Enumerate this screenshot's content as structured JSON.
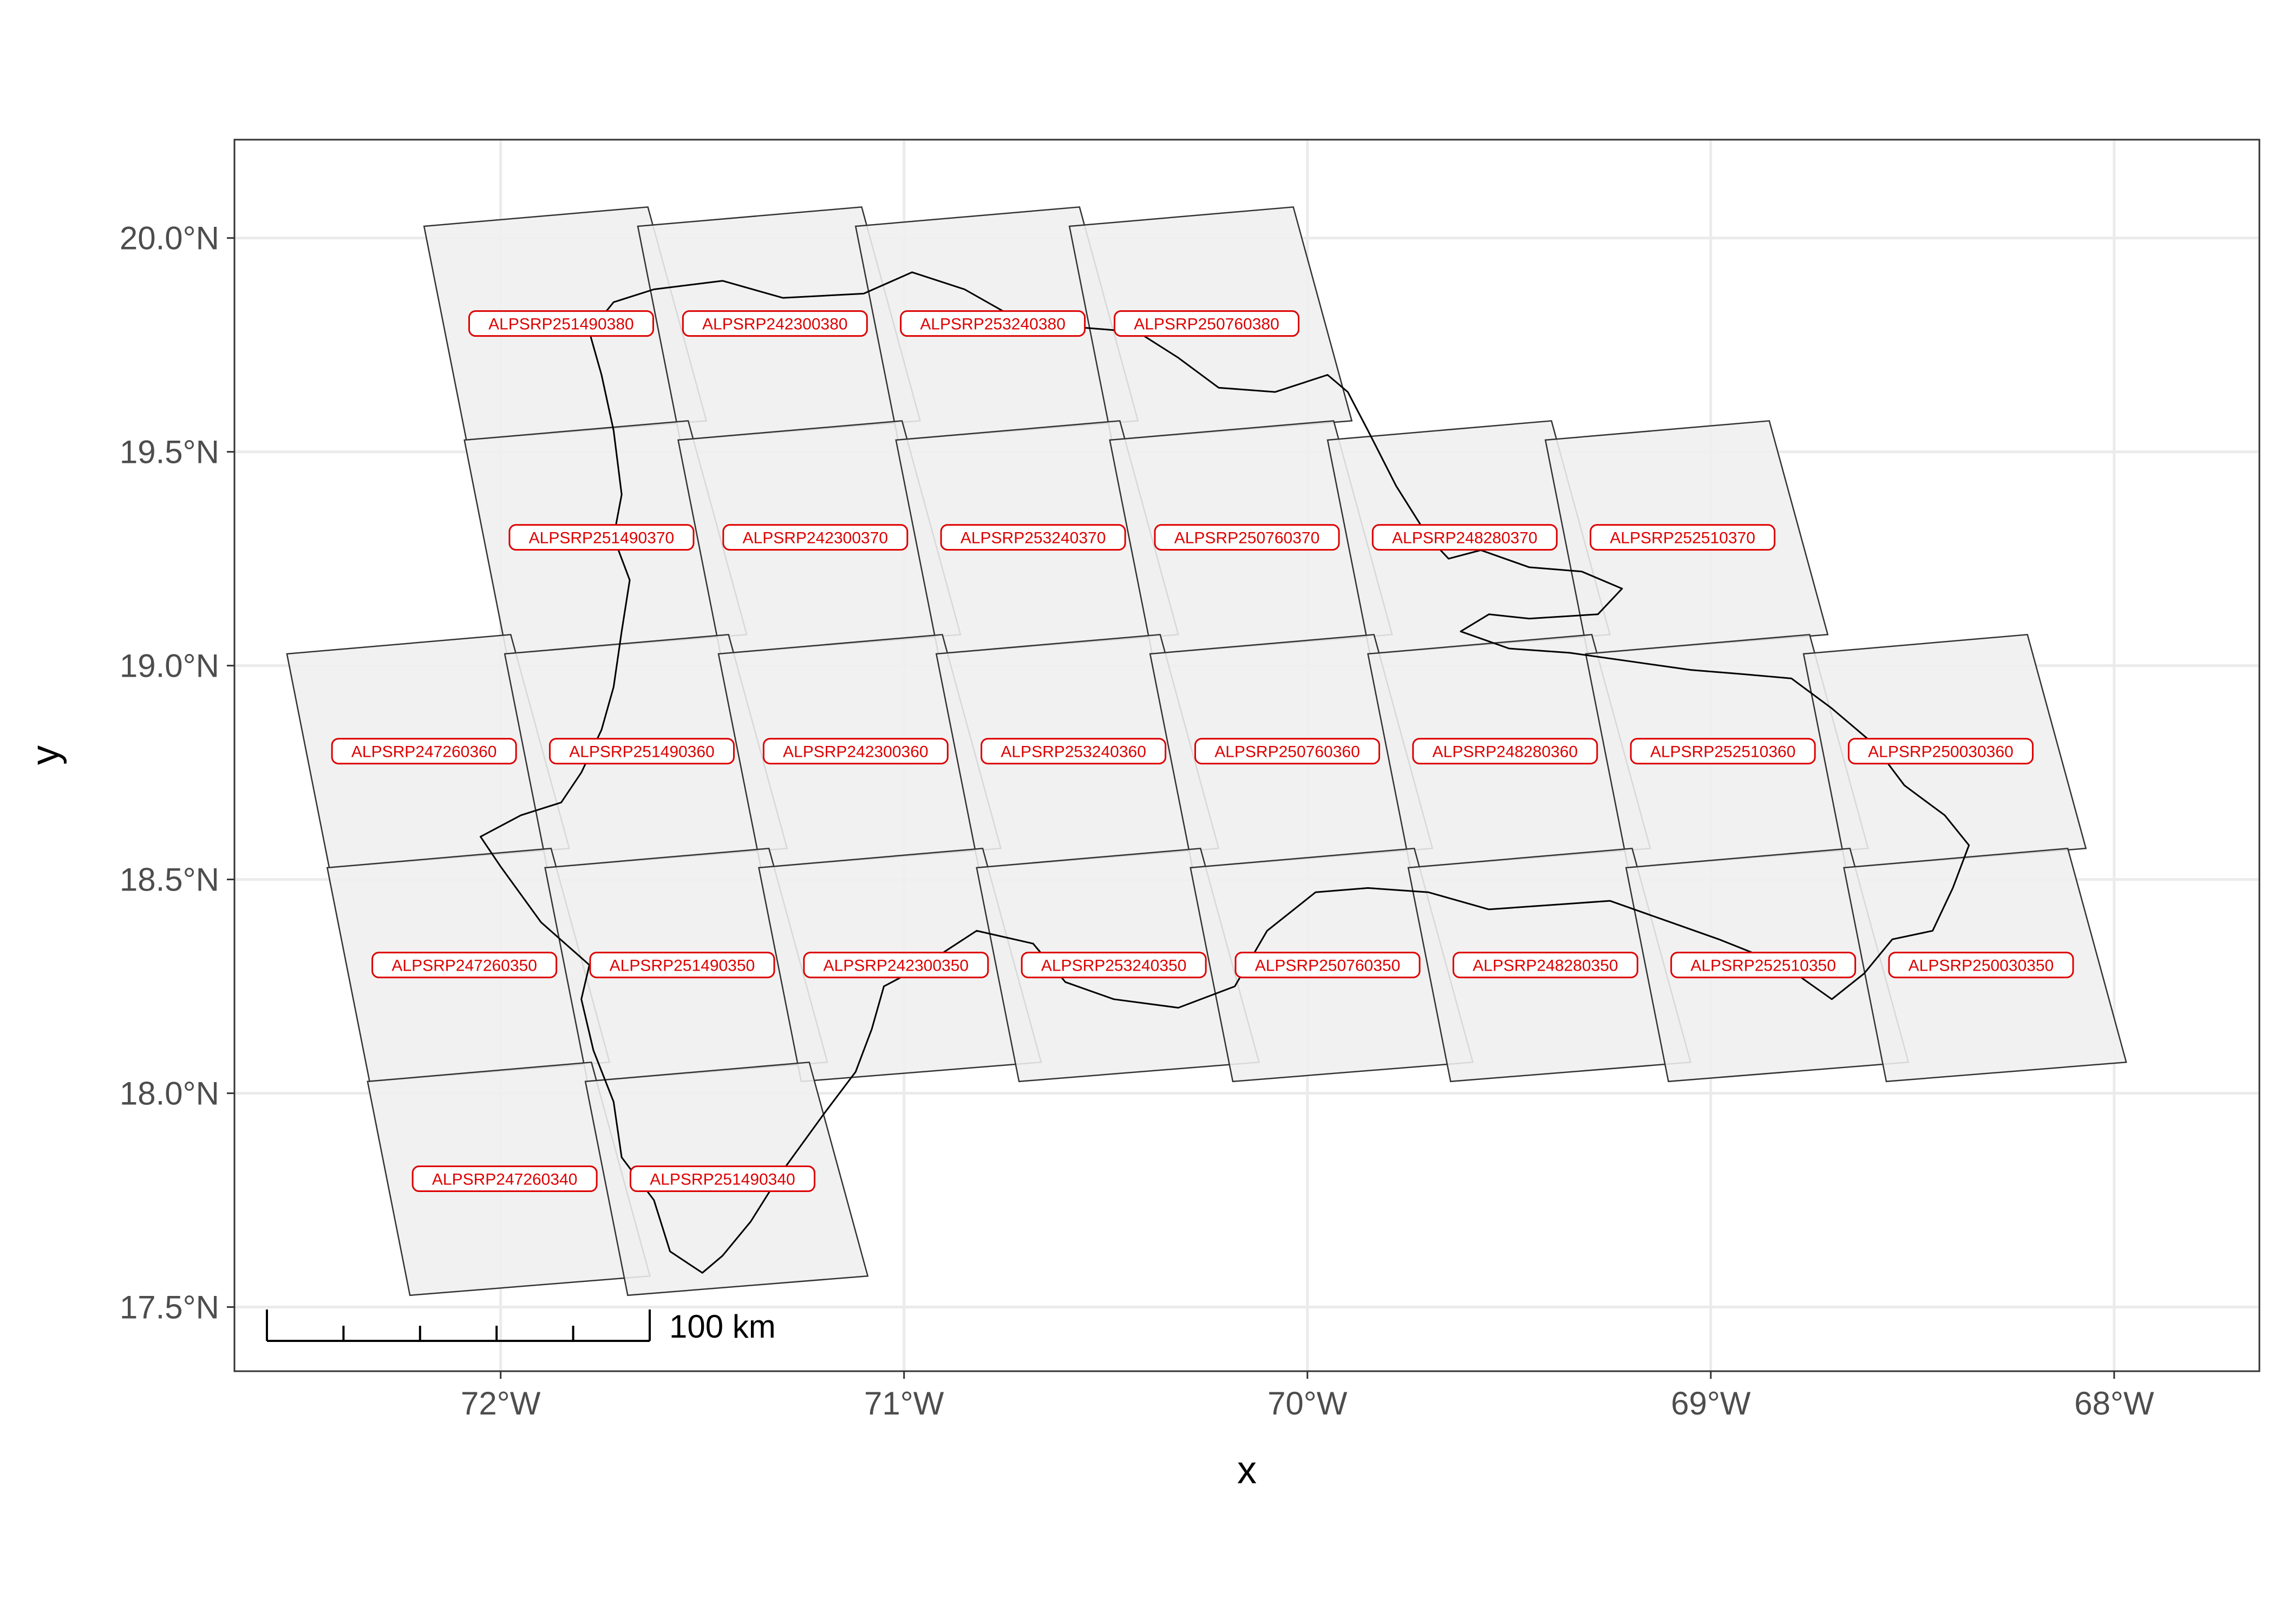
{
  "chart_data": {
    "type": "map",
    "title": "",
    "xlabel": "x",
    "ylabel": "y",
    "xlim": [
      -72.66,
      -67.64
    ],
    "ylim": [
      17.35,
      20.23
    ],
    "x_ticks": [
      {
        "value": -72,
        "label": "72°W"
      },
      {
        "value": -71,
        "label": "71°W"
      },
      {
        "value": -70,
        "label": "70°W"
      },
      {
        "value": -69,
        "label": "69°W"
      },
      {
        "value": -68,
        "label": "68°W"
      }
    ],
    "y_ticks": [
      {
        "value": 17.5,
        "label": "17.5°N"
      },
      {
        "value": 18.0,
        "label": "18.0°N"
      },
      {
        "value": 18.5,
        "label": "18.5°N"
      },
      {
        "value": 19.0,
        "label": "19.0°N"
      },
      {
        "value": 19.5,
        "label": "19.5°N"
      },
      {
        "value": 20.0,
        "label": "20.0°N"
      }
    ],
    "grid": true,
    "scale_bar": {
      "label": "100 km",
      "position": "bottom-left",
      "segments": 5
    },
    "colors": {
      "footprint_fill": "#efefef",
      "footprint_stroke": "#333333",
      "label_text": "#dd0000",
      "label_border": "#dd0000",
      "coastline": "#000000",
      "grid": "#ebebeb"
    },
    "frame_skew_deg": 0.145,
    "frame_rise_deg": 0.045,
    "frame_height_deg": 0.5,
    "frame_top_left_width_deg": 0.535,
    "frame_bottom_left_width_deg": 0.615,
    "scenes": [
      {
        "id": "ALPSRP251490380",
        "lon": -71.85,
        "lat": 19.8
      },
      {
        "id": "ALPSRP242300380",
        "lon": -71.32,
        "lat": 19.8
      },
      {
        "id": "ALPSRP253240380",
        "lon": -70.78,
        "lat": 19.8
      },
      {
        "id": "ALPSRP250760380",
        "lon": -70.25,
        "lat": 19.8
      },
      {
        "id": "ALPSRP251490370",
        "lon": -71.75,
        "lat": 19.3
      },
      {
        "id": "ALPSRP242300370",
        "lon": -71.22,
        "lat": 19.3
      },
      {
        "id": "ALPSRP253240370",
        "lon": -70.68,
        "lat": 19.3
      },
      {
        "id": "ALPSRP250760370",
        "lon": -70.15,
        "lat": 19.3
      },
      {
        "id": "ALPSRP248280370",
        "lon": -69.61,
        "lat": 19.3
      },
      {
        "id": "ALPSRP252510370",
        "lon": -69.07,
        "lat": 19.3
      },
      {
        "id": "ALPSRP247260360",
        "lon": -72.19,
        "lat": 18.8
      },
      {
        "id": "ALPSRP251490360",
        "lon": -71.65,
        "lat": 18.8
      },
      {
        "id": "ALPSRP242300360",
        "lon": -71.12,
        "lat": 18.8
      },
      {
        "id": "ALPSRP253240360",
        "lon": -70.58,
        "lat": 18.8
      },
      {
        "id": "ALPSRP250760360",
        "lon": -70.05,
        "lat": 18.8
      },
      {
        "id": "ALPSRP248280360",
        "lon": -69.51,
        "lat": 18.8
      },
      {
        "id": "ALPSRP252510360",
        "lon": -68.97,
        "lat": 18.8
      },
      {
        "id": "ALPSRP250030360",
        "lon": -68.43,
        "lat": 18.8
      },
      {
        "id": "ALPSRP247260350",
        "lon": -72.09,
        "lat": 18.3
      },
      {
        "id": "ALPSRP251490350",
        "lon": -71.55,
        "lat": 18.3
      },
      {
        "id": "ALPSRP242300350",
        "lon": -71.02,
        "lat": 18.3
      },
      {
        "id": "ALPSRP253240350",
        "lon": -70.48,
        "lat": 18.3
      },
      {
        "id": "ALPSRP250760350",
        "lon": -69.95,
        "lat": 18.3
      },
      {
        "id": "ALPSRP248280350",
        "lon": -69.41,
        "lat": 18.3
      },
      {
        "id": "ALPSRP252510350",
        "lon": -68.87,
        "lat": 18.3
      },
      {
        "id": "ALPSRP250030350",
        "lon": -68.33,
        "lat": 18.3
      },
      {
        "id": "ALPSRP247260340",
        "lon": -71.99,
        "lat": 17.8
      },
      {
        "id": "ALPSRP251490340",
        "lon": -71.45,
        "lat": 17.8
      }
    ],
    "coastline": [
      [
        -71.72,
        19.85
      ],
      [
        -71.62,
        19.88
      ],
      [
        -71.45,
        19.9
      ],
      [
        -71.3,
        19.86
      ],
      [
        -71.1,
        19.87
      ],
      [
        -70.98,
        19.92
      ],
      [
        -70.85,
        19.88
      ],
      [
        -70.7,
        19.8
      ],
      [
        -70.55,
        19.79
      ],
      [
        -70.42,
        19.78
      ],
      [
        -70.32,
        19.72
      ],
      [
        -70.22,
        19.65
      ],
      [
        -70.08,
        19.64
      ],
      [
        -69.95,
        19.68
      ],
      [
        -69.9,
        19.64
      ],
      [
        -69.85,
        19.55
      ],
      [
        -69.78,
        19.42
      ],
      [
        -69.7,
        19.3
      ],
      [
        -69.65,
        19.25
      ],
      [
        -69.57,
        19.27
      ],
      [
        -69.45,
        19.23
      ],
      [
        -69.32,
        19.22
      ],
      [
        -69.22,
        19.18
      ],
      [
        -69.28,
        19.12
      ],
      [
        -69.45,
        19.11
      ],
      [
        -69.55,
        19.12
      ],
      [
        -69.62,
        19.08
      ],
      [
        -69.5,
        19.04
      ],
      [
        -69.35,
        19.03
      ],
      [
        -69.2,
        19.01
      ],
      [
        -69.05,
        18.99
      ],
      [
        -68.92,
        18.98
      ],
      [
        -68.8,
        18.97
      ],
      [
        -68.7,
        18.9
      ],
      [
        -68.6,
        18.82
      ],
      [
        -68.52,
        18.72
      ],
      [
        -68.42,
        18.65
      ],
      [
        -68.36,
        18.58
      ],
      [
        -68.4,
        18.48
      ],
      [
        -68.45,
        18.38
      ],
      [
        -68.55,
        18.36
      ],
      [
        -68.62,
        18.28
      ],
      [
        -68.7,
        18.22
      ],
      [
        -68.82,
        18.3
      ],
      [
        -68.98,
        18.36
      ],
      [
        -69.1,
        18.4
      ],
      [
        -69.25,
        18.45
      ],
      [
        -69.4,
        18.44
      ],
      [
        -69.55,
        18.43
      ],
      [
        -69.7,
        18.47
      ],
      [
        -69.85,
        18.48
      ],
      [
        -69.98,
        18.47
      ],
      [
        -70.1,
        18.38
      ],
      [
        -70.18,
        18.25
      ],
      [
        -70.32,
        18.2
      ],
      [
        -70.48,
        18.22
      ],
      [
        -70.6,
        18.26
      ],
      [
        -70.68,
        18.35
      ],
      [
        -70.82,
        18.38
      ],
      [
        -70.95,
        18.3
      ],
      [
        -71.05,
        18.25
      ],
      [
        -71.08,
        18.15
      ],
      [
        -71.12,
        18.05
      ],
      [
        -71.2,
        17.95
      ],
      [
        -71.3,
        17.82
      ],
      [
        -71.38,
        17.7
      ],
      [
        -71.45,
        17.62
      ],
      [
        -71.5,
        17.58
      ],
      [
        -71.58,
        17.63
      ],
      [
        -71.62,
        17.75
      ],
      [
        -71.7,
        17.85
      ],
      [
        -71.72,
        17.98
      ],
      [
        -71.77,
        18.1
      ],
      [
        -71.8,
        18.22
      ],
      [
        -71.78,
        18.3
      ],
      [
        -71.9,
        18.4
      ],
      [
        -72.0,
        18.53
      ],
      [
        -72.05,
        18.6
      ],
      [
        -71.95,
        18.65
      ],
      [
        -71.85,
        18.68
      ],
      [
        -71.8,
        18.75
      ],
      [
        -71.75,
        18.85
      ],
      [
        -71.72,
        18.95
      ],
      [
        -71.7,
        19.08
      ],
      [
        -71.68,
        19.2
      ],
      [
        -71.72,
        19.3
      ],
      [
        -71.7,
        19.4
      ],
      [
        -71.72,
        19.55
      ],
      [
        -71.75,
        19.68
      ],
      [
        -71.78,
        19.78
      ],
      [
        -71.72,
        19.85
      ]
    ]
  }
}
